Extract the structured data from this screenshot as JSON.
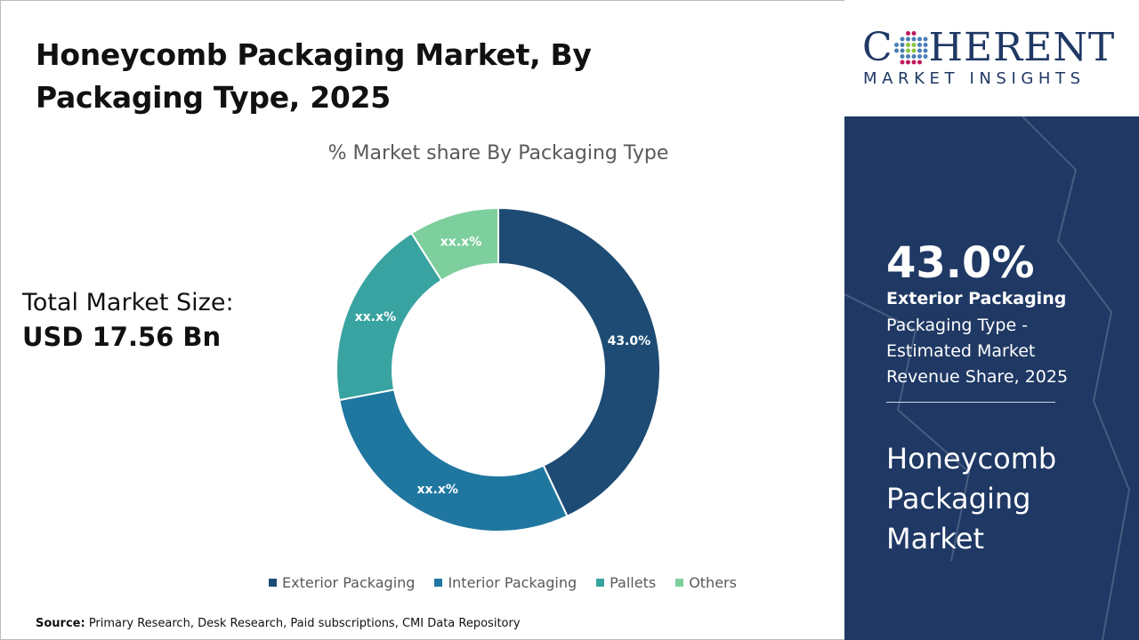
{
  "header": {
    "title": "Honeycomb Packaging Market, By Packaging Type, 2025"
  },
  "total": {
    "label": "Total Market Size:",
    "value": "USD 17.56 Bn"
  },
  "source": {
    "label": "Source:",
    "text": " Primary Research, Desk Research, Paid subscriptions, CMI Data Repository"
  },
  "logo": {
    "name": "COHERENT",
    "tagline": "MARKET INSIGHTS",
    "c": "C",
    "rest": "HERENT"
  },
  "highlight": {
    "value": "43.0%",
    "segment": "Exterior Packaging",
    "description": "Packaging Type - Estimated Market Revenue Share, 2025",
    "market": "Honeycomb Packaging Market"
  },
  "chart_data": {
    "type": "pie",
    "donut": true,
    "title": "% Market share By Packaging Type",
    "categories": [
      "Exterior Packaging",
      "Interior Packaging",
      "Pallets",
      "Others"
    ],
    "values": [
      43.0,
      29,
      19,
      9
    ],
    "data_labels": [
      "43.0%",
      "xx.x%",
      "xx.x%",
      "xx.x%"
    ],
    "colors": [
      "#1d4b73",
      "#1f77a0",
      "#38a3a0",
      "#7dcf9d"
    ],
    "legend": "bottom"
  }
}
